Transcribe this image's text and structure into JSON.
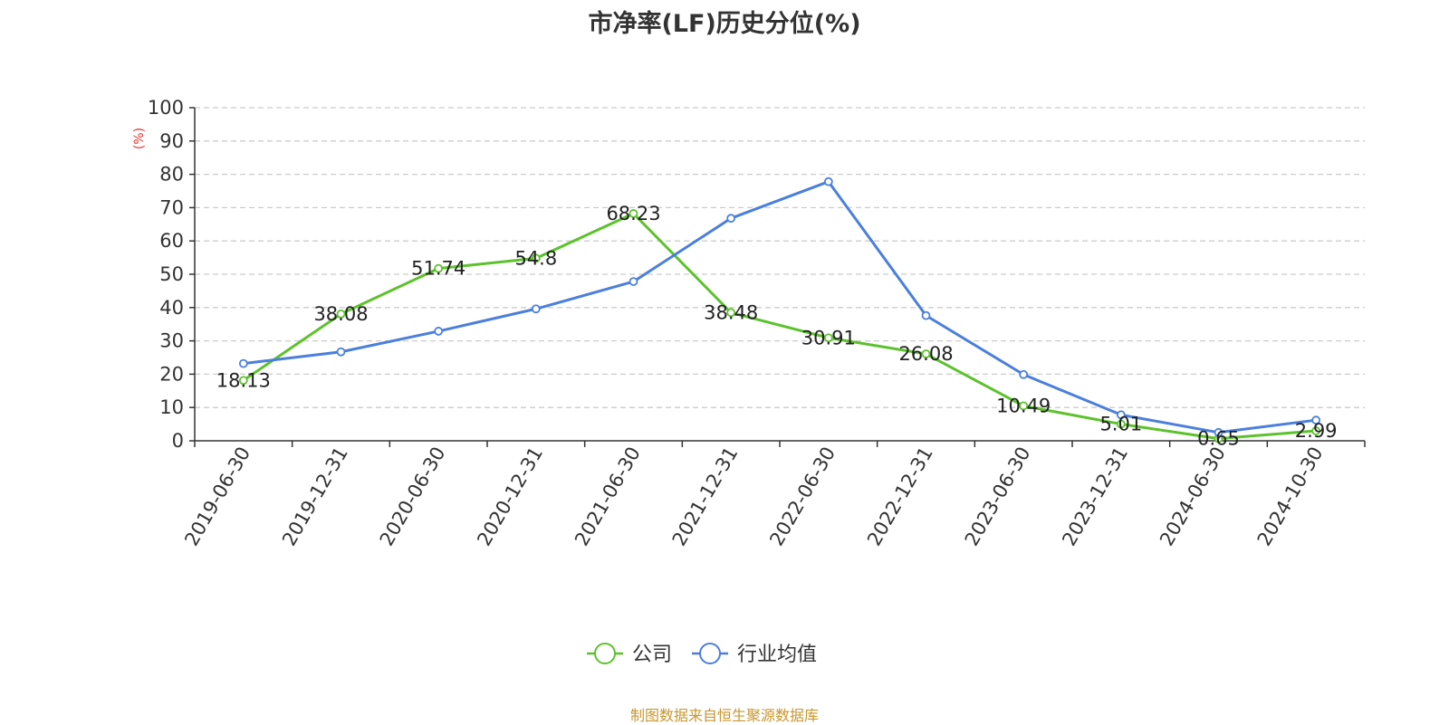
{
  "chart_data": {
    "type": "line",
    "title": "市净率(LF)历史分位(%)",
    "ylabel": "(%)",
    "ylim": [
      0,
      100
    ],
    "yticks": [
      0,
      10,
      20,
      30,
      40,
      50,
      60,
      70,
      80,
      90,
      100
    ],
    "grid": true,
    "legend_position": "bottom",
    "categories": [
      "2019-06-30",
      "2019-12-31",
      "2020-06-30",
      "2020-12-31",
      "2021-06-30",
      "2021-12-31",
      "2022-06-30",
      "2022-12-31",
      "2023-06-30",
      "2023-12-31",
      "2024-06-30",
      "2024-10-30"
    ],
    "series": [
      {
        "name": "公司",
        "color": "#5cc22c",
        "values": [
          18.13,
          38.08,
          51.74,
          54.8,
          68.23,
          38.48,
          30.91,
          26.08,
          10.49,
          5.01,
          0.65,
          2.99
        ],
        "labels": [
          "18.13",
          "38.08",
          "51.74",
          "54.8",
          "68.23",
          "38.48",
          "30.91",
          "26.08",
          "10.49",
          "5.01",
          "0.65",
          "2.99"
        ]
      },
      {
        "name": "行业均值",
        "color": "#4b7fdc",
        "values": [
          23.2,
          26.7,
          32.9,
          39.6,
          47.8,
          66.8,
          77.8,
          37.6,
          19.9,
          7.8,
          2.5,
          6.2
        ]
      }
    ]
  },
  "source_note": "制图数据来自恒生聚源数据库",
  "colors": {
    "title": "#333333",
    "axis": "#333333",
    "grid": "#cccccc",
    "ylabel": "#e8352f",
    "source_note": "#c8962e"
  }
}
